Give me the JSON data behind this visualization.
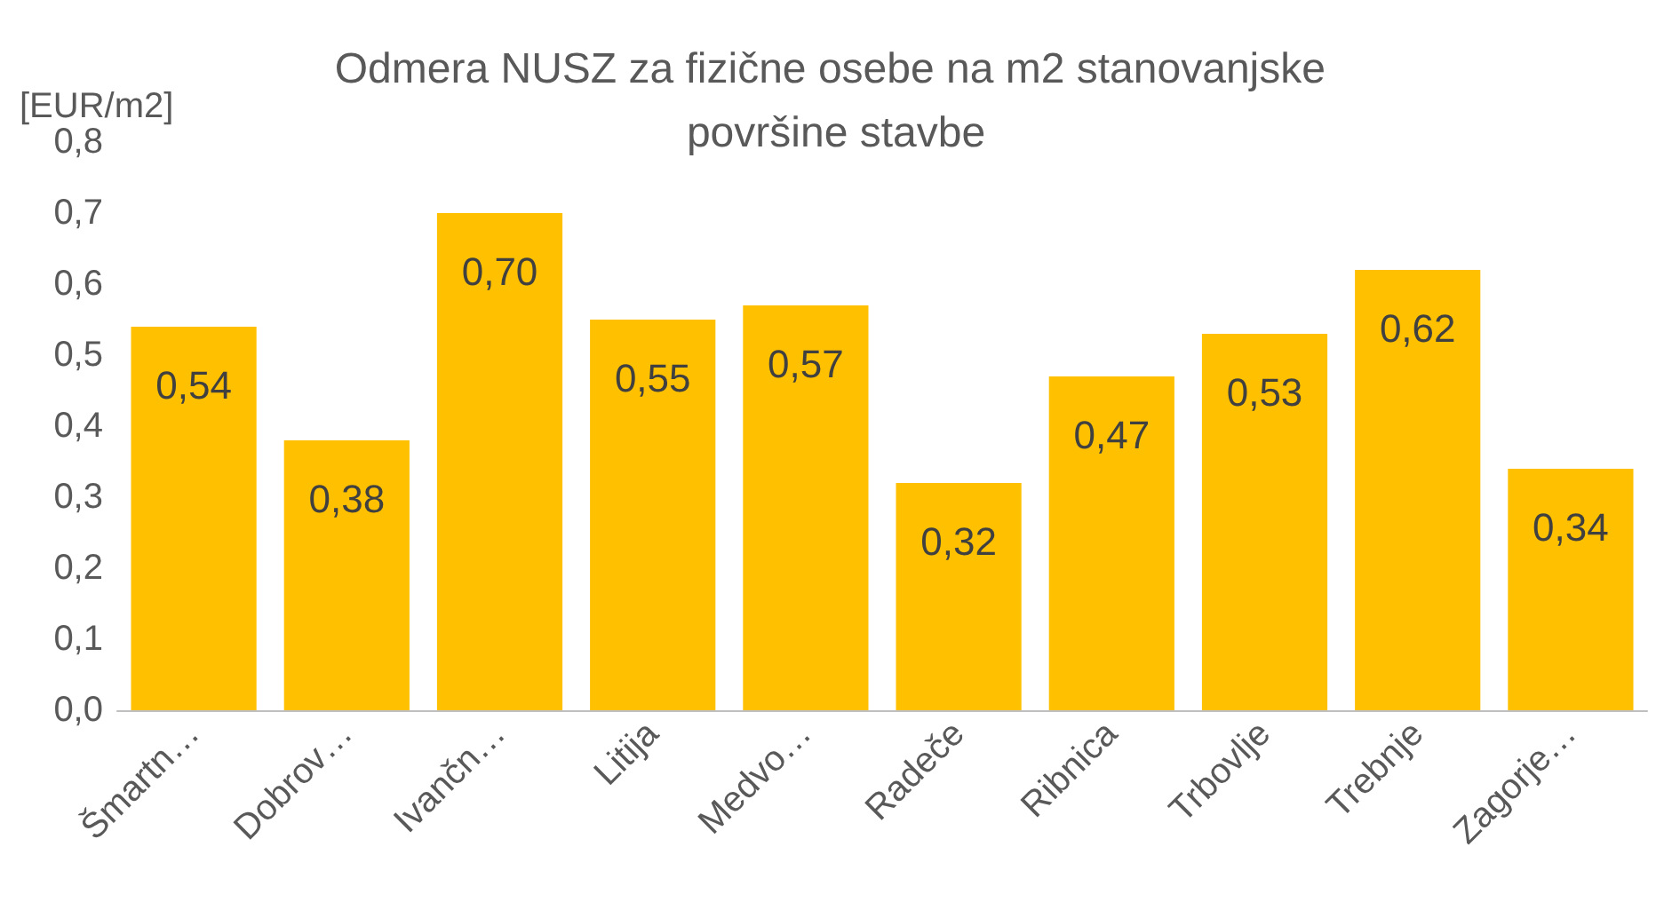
{
  "chart_data": {
    "type": "bar",
    "title": "Odmera NUSZ za fizične osebe na m2 stanovanjske površine stavbe",
    "ylabel": "[EUR/m2]",
    "categories": [
      "Šmartn…",
      "Dobrov…",
      "Ivančn…",
      "Litija",
      "Medvo…",
      "Radeče",
      "Ribnica",
      "Trbovlje",
      "Trebnje",
      "Zagorje…"
    ],
    "values": [
      0.54,
      0.38,
      0.7,
      0.55,
      0.57,
      0.32,
      0.47,
      0.53,
      0.62,
      0.34
    ],
    "value_labels": [
      "0,54",
      "0,38",
      "0,70",
      "0,55",
      "0,57",
      "0,32",
      "0,47",
      "0,53",
      "0,62",
      "0,34"
    ],
    "color": "#ffc000",
    "ylim": [
      0,
      0.8
    ],
    "yticks": [
      {
        "value": 0,
        "label": "0,0"
      },
      {
        "value": 0.1,
        "label": "0,1"
      },
      {
        "value": 0.2,
        "label": "0,2"
      },
      {
        "value": 0.3,
        "label": "0,3"
      },
      {
        "value": 0.4,
        "label": "0,4"
      },
      {
        "value": 0.5,
        "label": "0,5"
      },
      {
        "value": 0.6,
        "label": "0,6"
      },
      {
        "value": 0.7,
        "label": "0,7"
      },
      {
        "value": 0.8,
        "label": "0,8"
      }
    ],
    "grid": false
  }
}
